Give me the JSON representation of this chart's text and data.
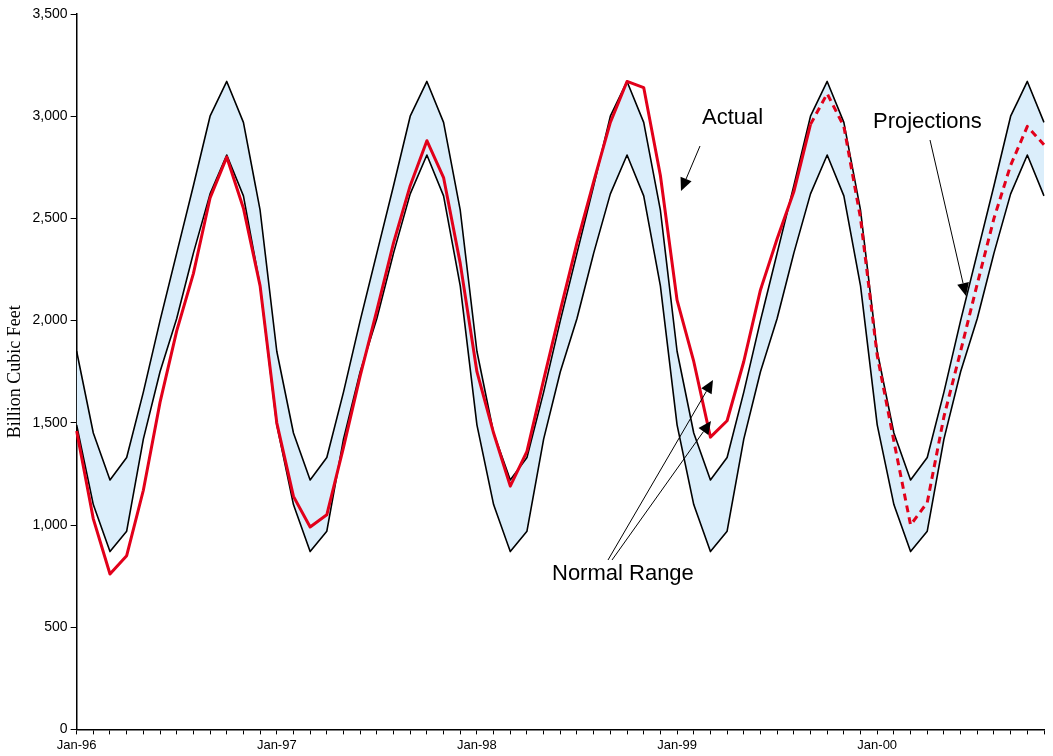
{
  "chart_data": {
    "type": "line",
    "ylabel": "Billion Cubic Feet",
    "categories": [
      "Jan-96",
      null,
      null,
      null,
      null,
      null,
      null,
      null,
      null,
      null,
      null,
      null,
      "Jan-97",
      null,
      null,
      null,
      null,
      null,
      null,
      null,
      null,
      null,
      null,
      null,
      "Jan-98",
      null,
      null,
      null,
      null,
      null,
      null,
      null,
      null,
      null,
      null,
      null,
      "Jan-99",
      null,
      null,
      null,
      null,
      null,
      null,
      null,
      null,
      null,
      null,
      null,
      "Jan-00",
      null,
      null,
      null,
      null,
      null,
      null,
      null,
      null,
      null,
      null
    ],
    "series": [
      {
        "color": "#000000",
        "values": [
          1850,
          1450,
          1220,
          1330,
          1650,
          2000,
          2330,
          2660,
          3000,
          3170,
          2970,
          2540,
          1850,
          1450,
          1220,
          1330,
          1650,
          2000,
          2330,
          2660,
          3000,
          3170,
          2970,
          2540,
          1850,
          1450,
          1220,
          1330,
          1650,
          2000,
          2330,
          2660,
          3000,
          3170,
          2970,
          2540,
          1850,
          1450,
          1220,
          1330,
          1650,
          2000,
          2330,
          2660,
          3000,
          3170,
          2970,
          2540,
          1850,
          1450,
          1220,
          1330,
          1650,
          2000,
          2330,
          2660,
          3000,
          3170,
          2970
        ]
      },
      {
        "color": "#000000",
        "values": [
          1490,
          1100,
          870,
          970,
          1420,
          1750,
          2010,
          2330,
          2620,
          2810,
          2610,
          2170,
          1490,
          1100,
          870,
          970,
          1420,
          1750,
          2010,
          2330,
          2620,
          2810,
          2610,
          2170,
          1490,
          1100,
          870,
          970,
          1420,
          1750,
          2010,
          2330,
          2620,
          2810,
          2610,
          2170,
          1490,
          1100,
          870,
          970,
          1420,
          1750,
          2010,
          2330,
          2620,
          2810,
          2610,
          2170,
          1490,
          1100,
          870,
          970,
          1420,
          1750,
          2010,
          2330,
          2620,
          2810,
          2610
        ]
      },
      {
        "color": "#dbeefb",
        "values": [
          null,
          null,
          null,
          null,
          null,
          null,
          null,
          null,
          null,
          null,
          null,
          null,
          null,
          null,
          null,
          null,
          null,
          null,
          null,
          null,
          null,
          null,
          null,
          null,
          null,
          null,
          null,
          null,
          null,
          null,
          null,
          null,
          null,
          null,
          null,
          null,
          null,
          null,
          null,
          null,
          null,
          null,
          null,
          null,
          null,
          null,
          null,
          null,
          null,
          null,
          null,
          null,
          null,
          null,
          null,
          null,
          null,
          null,
          null
        ],
        "lower": [
          1490,
          1100,
          870,
          970,
          1420,
          1750,
          2010,
          2330,
          2620,
          2810,
          2610,
          2170,
          1490,
          1100,
          870,
          970,
          1420,
          1750,
          2010,
          2330,
          2620,
          2810,
          2610,
          2170,
          1490,
          1100,
          870,
          970,
          1420,
          1750,
          2010,
          2330,
          2620,
          2810,
          2610,
          2170,
          1490,
          1100,
          870,
          970,
          1420,
          1750,
          2010,
          2330,
          2620,
          2810,
          2610,
          2170,
          1490,
          1100,
          870,
          970,
          1420,
          1750,
          2010,
          2330,
          2620,
          2810,
          2610
        ],
        "upper": [
          1850,
          1450,
          1220,
          1330,
          1650,
          2000,
          2330,
          2660,
          3000,
          3170,
          2970,
          2540,
          1850,
          1450,
          1220,
          1330,
          1650,
          2000,
          2330,
          2660,
          3000,
          3170,
          2970,
          2540,
          1850,
          1450,
          1220,
          1330,
          1650,
          2000,
          2330,
          2660,
          3000,
          3170,
          2970,
          2540,
          1850,
          1450,
          1220,
          1330,
          1650,
          2000,
          2330,
          2660,
          3000,
          3170,
          2970,
          2540,
          1850,
          1450,
          1220,
          1330,
          1650,
          2000,
          2330,
          2660,
          3000,
          3170,
          2970
        ]
      },
      {
        "color": "#e2001a",
        "values": [
          1460,
          1030,
          760,
          850,
          1170,
          1600,
          1950,
          2230,
          2600,
          2800,
          2550,
          2170,
          1500,
          1140,
          990,
          1050,
          1380,
          1730,
          2050,
          2380,
          2660,
          2880,
          2700,
          2280,
          1750,
          1450,
          1190,
          1360,
          1710,
          2050,
          2380,
          2680,
          2970,
          3170,
          3140,
          2710,
          2100,
          1800,
          1430,
          1510,
          1800,
          2150,
          2400,
          2630,
          2960,
          null,
          null,
          null,
          null,
          null,
          null,
          null,
          null,
          null,
          null,
          null,
          null,
          null,
          null
        ]
      },
      {
        "color": "#e2001a",
        "line_style": "dashed",
        "values": [
          null,
          null,
          null,
          null,
          null,
          null,
          null,
          null,
          null,
          null,
          null,
          null,
          null,
          null,
          null,
          null,
          null,
          null,
          null,
          null,
          null,
          null,
          null,
          null,
          null,
          null,
          null,
          null,
          null,
          null,
          null,
          null,
          null,
          null,
          null,
          null,
          null,
          null,
          null,
          null,
          null,
          null,
          null,
          null,
          2960,
          3110,
          2950,
          2500,
          1830,
          1410,
          1000,
          1110,
          1530,
          1850,
          2180,
          2500,
          2760,
          2950,
          2860
        ]
      }
    ],
    "ylim": [
      0,
      3500
    ],
    "yticks": [
      0,
      500,
      {
        "value": 1000,
        "label": "1,000"
      },
      {
        "value": 1500,
        "label": "1,500"
      },
      {
        "value": 2000,
        "label": "2,000"
      },
      {
        "value": 2500,
        "label": "2,500"
      },
      {
        "value": 3000,
        "label": "3,000"
      },
      {
        "value": 3500,
        "label": "3,500"
      }
    ],
    "grid": false,
    "legend": false,
    "marker": "none",
    "annotations": [
      "Actual",
      "Projections",
      "Normal Range"
    ]
  }
}
